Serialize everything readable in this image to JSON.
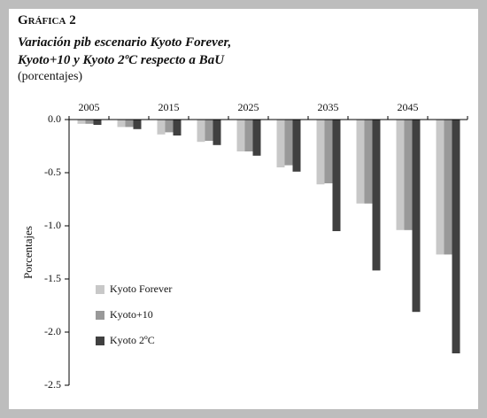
{
  "chart_data": {
    "type": "bar",
    "title": "Gráfica 2",
    "subtitle": [
      "Variación pib escenario Kyoto Forever,",
      "Kyoto+10 y Kyoto 2ºC respecto a BaU"
    ],
    "note": "(porcentajes)",
    "y_label": "Porcentajes",
    "categories": [
      "2005",
      null,
      "2015",
      null,
      "2025",
      null,
      "2035",
      null,
      "2045",
      null
    ],
    "series": [
      {
        "name": "Kyoto Forever",
        "color": "#c8c8c8",
        "values": [
          -0.04,
          -0.07,
          -0.14,
          -0.21,
          -0.3,
          -0.45,
          -0.61,
          -0.79,
          -1.04,
          -1.27
        ]
      },
      {
        "name": "Kyoto+10",
        "color": "#999999",
        "values": [
          -0.04,
          -0.07,
          -0.12,
          -0.2,
          -0.3,
          -0.43,
          -0.6,
          -0.79,
          -1.04,
          -1.27
        ]
      },
      {
        "name": "Kyoto 2ºC",
        "color": "#404040",
        "values": [
          -0.05,
          -0.09,
          -0.15,
          -0.24,
          -0.34,
          -0.49,
          -1.05,
          -1.42,
          -1.81,
          -2.2
        ]
      }
    ],
    "ylim": [
      0,
      -2.5
    ],
    "yticks": [
      {
        "value": 0,
        "label": "0.0"
      },
      -0.5,
      {
        "value": -1,
        "label": "-1.0"
      },
      -1.5,
      {
        "value": -2,
        "label": "-2.0"
      },
      -2.5
    ],
    "grid": false,
    "legend": "lower-left"
  }
}
